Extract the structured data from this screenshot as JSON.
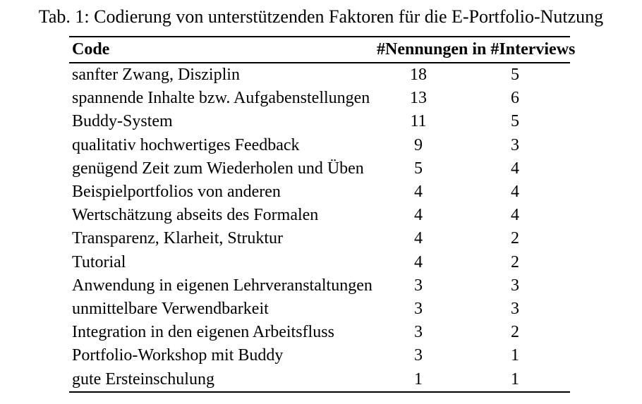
{
  "page": {
    "background_color": "#ffffff",
    "text_color": "#000000"
  },
  "caption": "Tab. 1: Codierung von unterstützenden Faktoren für die E-Portfolio-Nutzung",
  "table": {
    "header": {
      "code": "Code",
      "counts": "#Nennungen in #Interviews"
    },
    "rows": [
      {
        "code": "sanfter Zwang, Disziplin",
        "nennungen": "18",
        "interviews": "5"
      },
      {
        "code": "spannende Inhalte bzw. Aufgabenstellungen",
        "nennungen": "13",
        "interviews": "6"
      },
      {
        "code": "Buddy-System",
        "nennungen": "11",
        "interviews": "5"
      },
      {
        "code": "qualitativ hochwertiges Feedback",
        "nennungen": "9",
        "interviews": "3"
      },
      {
        "code": "genügend Zeit zum Wiederholen und Üben",
        "nennungen": "5",
        "interviews": "4"
      },
      {
        "code": "Beispielportfolios von anderen",
        "nennungen": "4",
        "interviews": "4"
      },
      {
        "code": "Wertschätzung abseits des Formalen",
        "nennungen": "4",
        "interviews": "4"
      },
      {
        "code": "Transparenz, Klarheit, Struktur",
        "nennungen": "4",
        "interviews": "2"
      },
      {
        "code": "Tutorial",
        "nennungen": "4",
        "interviews": "2"
      },
      {
        "code": "Anwendung in eigenen Lehrveranstaltungen",
        "nennungen": "3",
        "interviews": "3"
      },
      {
        "code": "unmittelbare Verwendbarkeit",
        "nennungen": "3",
        "interviews": "3"
      },
      {
        "code": "Integration in den eigenen Arbeitsfluss",
        "nennungen": "3",
        "interviews": "2"
      },
      {
        "code": "Portfolio-Workshop mit Buddy",
        "nennungen": "3",
        "interviews": "1"
      },
      {
        "code": "gute Ersteinschulung",
        "nennungen": "1",
        "interviews": "1"
      }
    ]
  }
}
